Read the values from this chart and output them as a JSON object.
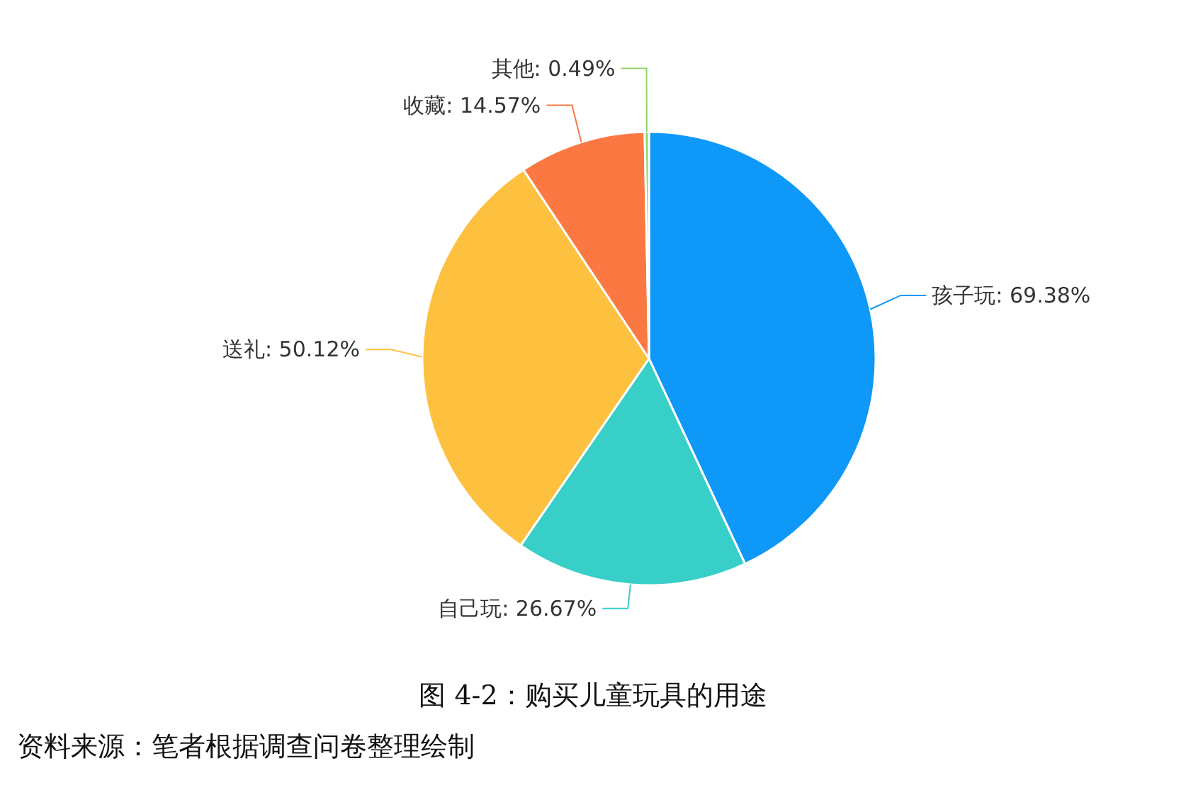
{
  "chart_data": {
    "type": "pie",
    "title": "图 4-2：购买儿童玩具的用途",
    "categories": [
      "孩子玩",
      "自己玩",
      "送礼",
      "收藏",
      "其他"
    ],
    "values": [
      69.38,
      26.67,
      50.12,
      14.57,
      0.49
    ],
    "value_labels": [
      "69.38%",
      "26.67%",
      "50.12%",
      "14.57%",
      "0.49%"
    ],
    "colors": [
      "#0e98f8",
      "#38cfc8",
      "#fdc13f",
      "#fb7843",
      "#91d56c"
    ],
    "annotations": [
      "资料来源：笔者根据调查问卷整理绘制"
    ]
  }
}
